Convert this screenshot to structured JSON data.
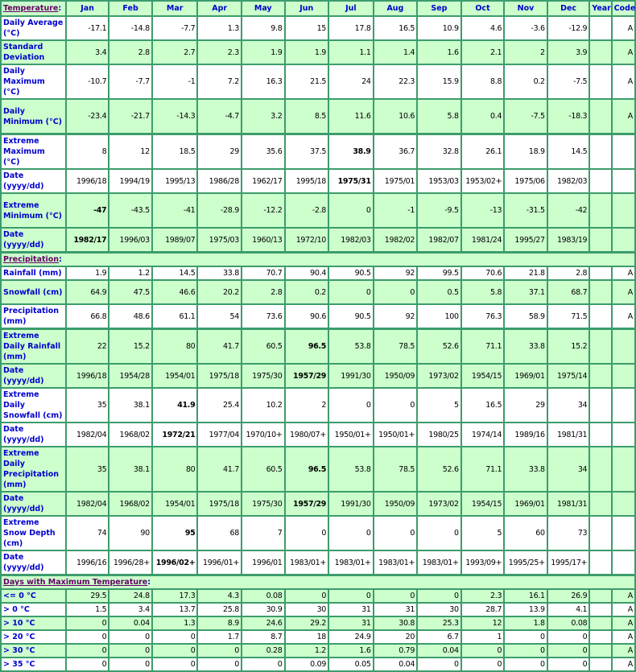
{
  "colors": {
    "accent": "#0000cc",
    "green_row": "#ccffcc",
    "border": "#3c9c6c",
    "section_title": "#660066"
  },
  "header": {
    "section": "Temperature",
    "colon": ":",
    "months": [
      "Jan",
      "Feb",
      "Mar",
      "Apr",
      "May",
      "Jun",
      "Jul",
      "Aug",
      "Sep",
      "Oct",
      "Nov",
      "Dec"
    ],
    "year": "Year",
    "code": "Code"
  },
  "rows": [
    {
      "label": "Daily Average (°C)",
      "bg": "w",
      "lines": 2,
      "values": [
        "-17.1",
        "-14.8",
        "-7.7",
        "1.3",
        "9.8",
        "15",
        "17.8",
        "16.5",
        "10.9",
        "4.6",
        "-3.6",
        "-12.9"
      ],
      "year": "",
      "code": "A"
    },
    {
      "label": "Standard Deviation",
      "bg": "g",
      "lines": 2,
      "values": [
        "3.4",
        "2.8",
        "2.7",
        "2.3",
        "1.9",
        "1.9",
        "1.1",
        "1.4",
        "1.6",
        "2.1",
        "2",
        "3.9"
      ],
      "year": "",
      "code": "A"
    },
    {
      "label": "Daily Maximum (°C)",
      "bg": "w",
      "lines": 3,
      "values": [
        "-10.7",
        "-7.7",
        "-1",
        "7.2",
        "16.3",
        "21.5",
        "24",
        "22.3",
        "15.9",
        "8.8",
        "0.2",
        "-7.5"
      ],
      "year": "",
      "code": "A"
    },
    {
      "label": "Daily Minimum (°C)",
      "bg": "g",
      "lines": 3,
      "values": [
        "-23.4",
        "-21.7",
        "-14.3",
        "-4.7",
        "3.2",
        "8.5",
        "11.6",
        "10.6",
        "5.8",
        "0.4",
        "-7.5",
        "-18.3"
      ],
      "year": "",
      "code": "A"
    },
    {
      "label": "Extreme Maximum (°C)",
      "bg": "w",
      "lines": 3,
      "thick": true,
      "values": [
        "8",
        "12",
        "18.5",
        "29",
        "35.6",
        "37.5",
        "38.9",
        "36.7",
        "32.8",
        "26.1",
        "18.9",
        "14.5"
      ],
      "bold": 6,
      "year": "",
      "code": ""
    },
    {
      "label": "Date (yyyy/dd)",
      "bg": "w",
      "lines": 2,
      "values": [
        "1996/18",
        "1994/19",
        "1995/13",
        "1986/28",
        "1962/17",
        "1995/18",
        "1975/31",
        "1975/01",
        "1953/03",
        "1953/02+",
        "1975/06",
        "1982/03"
      ],
      "bold": 6,
      "year": "",
      "code": ""
    },
    {
      "label": "Extreme Minimum (°C)",
      "bg": "g",
      "lines": 3,
      "values": [
        "-47",
        "-43.5",
        "-41",
        "-28.9",
        "-12.2",
        "-2.8",
        "0",
        "-1",
        "-9.5",
        "-13",
        "-31.5",
        "-42"
      ],
      "bold": 0,
      "year": "",
      "code": ""
    },
    {
      "label": "Date (yyyy/dd)",
      "bg": "g",
      "lines": 2,
      "values": [
        "1982/17",
        "1996/03",
        "1989/07",
        "1975/03",
        "1960/13",
        "1972/10",
        "1982/03",
        "1982/02",
        "1982/07",
        "1981/24",
        "1995/27",
        "1983/19"
      ],
      "bold": 0,
      "year": "",
      "code": ""
    },
    {
      "section": "Precipitation"
    },
    {
      "label": "Rainfall (mm)",
      "bg": "w",
      "lines": 1,
      "values": [
        "1.9",
        "1.2",
        "14.5",
        "33.8",
        "70.7",
        "90.4",
        "90.5",
        "92",
        "99.5",
        "70.6",
        "21.8",
        "2.8"
      ],
      "year": "",
      "code": "A"
    },
    {
      "label": "Snowfall (cm)",
      "bg": "g",
      "lines": 2,
      "values": [
        "64.9",
        "47.5",
        "46.6",
        "20.2",
        "2.8",
        "0.2",
        "0",
        "0",
        "0.5",
        "5.8",
        "37.1",
        "68.7"
      ],
      "year": "",
      "code": "A"
    },
    {
      "label": "Precipitation (mm)",
      "bg": "w",
      "lines": 2,
      "values": [
        "66.8",
        "48.6",
        "61.1",
        "54",
        "73.6",
        "90.6",
        "90.5",
        "92",
        "100",
        "76.3",
        "58.9",
        "71.5"
      ],
      "year": "",
      "code": "A"
    },
    {
      "label": "Extreme Daily Rainfall (mm)",
      "bg": "g",
      "lines": 2,
      "thick": true,
      "values": [
        "22",
        "15.2",
        "80",
        "41.7",
        "60.5",
        "96.5",
        "53.8",
        "78.5",
        "52.6",
        "71.1",
        "33.8",
        "15.2"
      ],
      "bold": 5,
      "year": "",
      "code": ""
    },
    {
      "label": "Date (yyyy/dd)",
      "bg": "g",
      "lines": 2,
      "values": [
        "1996/18",
        "1954/28",
        "1954/01",
        "1975/18",
        "1975/30",
        "1957/29",
        "1991/30",
        "1950/09",
        "1973/02",
        "1954/15",
        "1969/01",
        "1975/14"
      ],
      "bold": 5,
      "year": "",
      "code": ""
    },
    {
      "label": "Extreme Daily Snowfall (cm)",
      "bg": "w",
      "lines": 3,
      "values": [
        "35",
        "38.1",
        "41.9",
        "25.4",
        "10.2",
        "2",
        "0",
        "0",
        "5",
        "16.5",
        "29",
        "34"
      ],
      "bold": 2,
      "year": "",
      "code": ""
    },
    {
      "label": "Date (yyyy/dd)",
      "bg": "w",
      "lines": 2,
      "values": [
        "1982/04",
        "1968/02",
        "1972/21",
        "1977/04",
        "1970/10+",
        "1980/07+",
        "1950/01+",
        "1950/01+",
        "1980/25",
        "1974/14",
        "1989/16",
        "1981/31"
      ],
      "bold": 2,
      "year": "",
      "code": ""
    },
    {
      "label": "Extreme Daily Precipitation (mm)",
      "bg": "g",
      "lines": 3,
      "values": [
        "35",
        "38.1",
        "80",
        "41.7",
        "60.5",
        "96.5",
        "53.8",
        "78.5",
        "52.6",
        "71.1",
        "33.8",
        "34"
      ],
      "bold": 5,
      "year": "",
      "code": ""
    },
    {
      "label": "Date (yyyy/dd)",
      "bg": "g",
      "lines": 2,
      "values": [
        "1982/04",
        "1968/02",
        "1954/01",
        "1975/18",
        "1975/30",
        "1957/29",
        "1991/30",
        "1950/09",
        "1973/02",
        "1954/15",
        "1969/01",
        "1981/31"
      ],
      "bold": 5,
      "year": "",
      "code": ""
    },
    {
      "label": "Extreme Snow Depth (cm)",
      "bg": "w",
      "lines": 3,
      "values": [
        "74",
        "90",
        "95",
        "68",
        "7",
        "0",
        "0",
        "0",
        "0",
        "5",
        "60",
        "73"
      ],
      "bold": 2,
      "year": "",
      "code": ""
    },
    {
      "label": "Date (yyyy/dd)",
      "bg": "w",
      "lines": 2,
      "values": [
        "1996/16",
        "1996/28+",
        "1996/02+",
        "1996/01+",
        "1996/01",
        "1983/01+",
        "1983/01+",
        "1983/01+",
        "1983/01+",
        "1993/09+",
        "1995/25+",
        "1995/17+"
      ],
      "bold": 2,
      "year": "",
      "code": ""
    },
    {
      "section": "Days with Maximum Temperature"
    },
    {
      "label": "<= 0 °C",
      "bg": "g",
      "lines": 1,
      "values": [
        "29.5",
        "24.8",
        "17.3",
        "4.3",
        "0.08",
        "0",
        "0",
        "0",
        "0",
        "2.3",
        "16.1",
        "26.9"
      ],
      "year": "",
      "code": "A"
    },
    {
      "label": "> 0 °C",
      "bg": "w",
      "lines": 1,
      "values": [
        "1.5",
        "3.4",
        "13.7",
        "25.8",
        "30.9",
        "30",
        "31",
        "31",
        "30",
        "28.7",
        "13.9",
        "4.1"
      ],
      "year": "",
      "code": "A"
    },
    {
      "label": "> 10 °C",
      "bg": "g",
      "lines": 1,
      "values": [
        "0",
        "0.04",
        "1.3",
        "8.9",
        "24.6",
        "29.2",
        "31",
        "30.8",
        "25.3",
        "12",
        "1.8",
        "0.08"
      ],
      "year": "",
      "code": "A"
    },
    {
      "label": "> 20 °C",
      "bg": "w",
      "lines": 1,
      "values": [
        "0",
        "0",
        "0",
        "1.7",
        "8.7",
        "18",
        "24.9",
        "20",
        "6.7",
        "1",
        "0",
        "0"
      ],
      "year": "",
      "code": "A"
    },
    {
      "label": "> 30 °C",
      "bg": "g",
      "lines": 1,
      "values": [
        "0",
        "0",
        "0",
        "0",
        "0.28",
        "1.2",
        "1.6",
        "0.79",
        "0.04",
        "0",
        "0",
        "0"
      ],
      "year": "",
      "code": "A"
    },
    {
      "label": "> 35 °C",
      "bg": "w",
      "lines": 1,
      "values": [
        "0",
        "0",
        "0",
        "0",
        "0",
        "0.09",
        "0.05",
        "0.04",
        "0",
        "0",
        "0",
        "0"
      ],
      "year": "",
      "code": "A"
    }
  ]
}
